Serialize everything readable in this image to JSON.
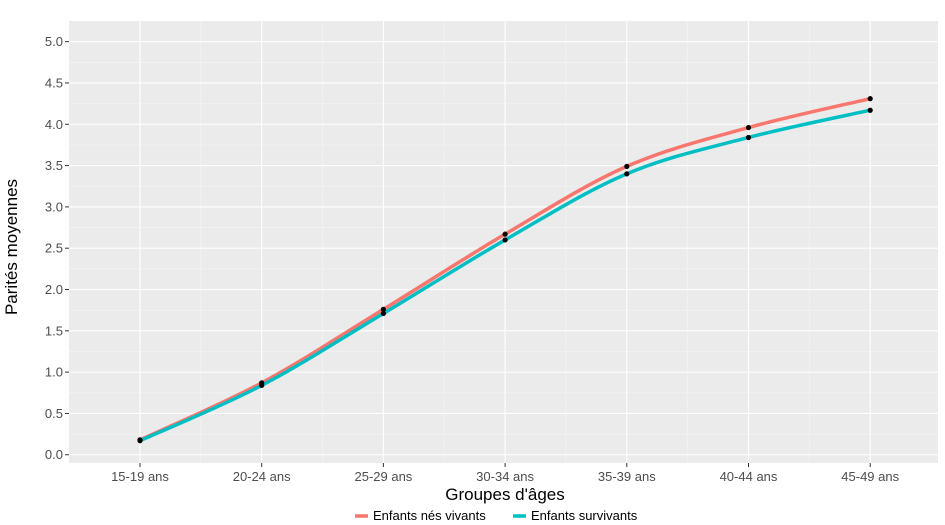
{
  "chart_data": {
    "type": "line",
    "categories": [
      "15-19 ans",
      "20-24 ans",
      "25-29 ans",
      "30-34 ans",
      "35-39 ans",
      "40-44 ans",
      "45-49 ans"
    ],
    "series": [
      {
        "name": "Enfants nés vivants",
        "color": "#F8766D",
        "values": [
          0.18,
          0.87,
          1.76,
          2.67,
          3.49,
          3.96,
          4.31
        ]
      },
      {
        "name": "Enfants survivants",
        "color": "#00BFC4",
        "values": [
          0.17,
          0.84,
          1.71,
          2.6,
          3.4,
          3.84,
          4.17
        ]
      }
    ],
    "xlabel": "Groupes d'âges",
    "ylabel": "Parités moyennes",
    "ylim": [
      -0.1,
      5.25
    ],
    "yticks": [
      "0.0",
      "0.5",
      "1.0",
      "1.5",
      "2.0",
      "2.5",
      "3.0",
      "3.5",
      "4.0",
      "4.5",
      "5.0"
    ],
    "ytick_values": [
      0,
      0.5,
      1,
      1.5,
      2,
      2.5,
      3,
      3.5,
      4,
      4.5,
      5
    ],
    "grid": true,
    "legend_position": "bottom",
    "panel_color": "#EBEBEB",
    "point_color": "#000000"
  }
}
